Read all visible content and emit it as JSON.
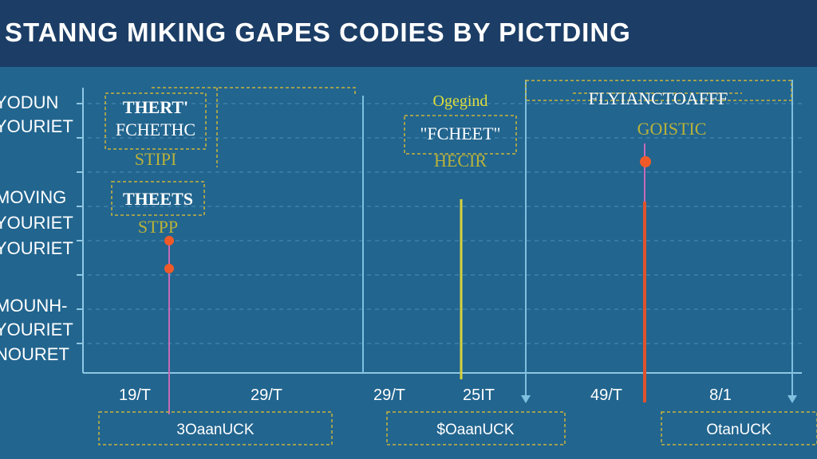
{
  "title": "STANNG MIKING GAPES CODIES BY PICTDING",
  "colors": {
    "background": "#22658f",
    "title_bar": "#1c3e66",
    "accent_orange": "#f05a28",
    "accent_yellow": "#d8d23c",
    "box_border": "#c9b33a",
    "grid": "#5fa3c6"
  },
  "chart_data": {
    "type": "timeline",
    "title": "STANNG MIKING GAPES CODIES BY PICTDING",
    "y_labels": [
      "YODUN",
      "YOURIET",
      "MOVING",
      "YOURIET",
      "YOURIET",
      "MOUNH-",
      "YOURIET",
      "NOURET"
    ],
    "x_labels": [
      "19/T",
      "29/T",
      "29/T",
      "25IT",
      "49/T",
      "8/1"
    ],
    "bottom_boxes": [
      "3OaanUCK",
      "$OaanUCK",
      "OtanUCK"
    ],
    "annotations": [
      {
        "lines": [
          "THERT'",
          "FCHETHC",
          "STIPI"
        ]
      },
      {
        "lines": [
          "THEETS",
          "STPP"
        ]
      },
      {
        "lines": [
          "Ogegind",
          "\"FCHEET\"",
          "HECIR"
        ]
      },
      {
        "lines": [
          "FLYIANCTOAFFF",
          "GOISTIC"
        ]
      }
    ],
    "events": [
      {
        "series": "orange",
        "markers": 2
      },
      {
        "series": "yellow",
        "markers": 0
      },
      {
        "series": "orange",
        "markers": 1
      }
    ]
  }
}
